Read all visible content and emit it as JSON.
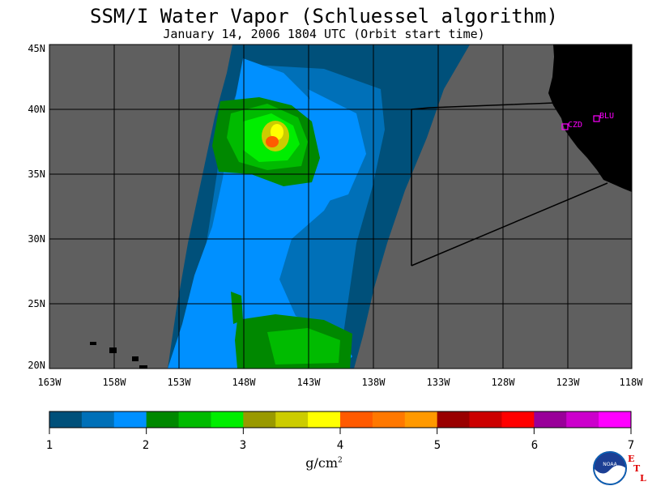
{
  "header": {
    "title": "SSM/I Water Vapor (Schluessel algorithm)",
    "subtitle": "January 14, 2006  1804 UTC  (Orbit start time)"
  },
  "map": {
    "lat_labels": [
      "45N",
      "40N",
      "35N",
      "30N",
      "25N",
      "20N"
    ],
    "lon_labels": [
      "163W",
      "158W",
      "153W",
      "148W",
      "143W",
      "138W",
      "133W",
      "128W",
      "123W",
      "118W"
    ],
    "stations": [
      {
        "id": "CZD",
        "lat": 38.6,
        "lon": -123.2
      },
      {
        "id": "BLU",
        "lat": 39.3,
        "lon": -120.8
      }
    ],
    "colors": {
      "no_data": "#5f5f5f",
      "land": "#000000",
      "station": "#ff00ff"
    }
  },
  "colorbar": {
    "colors": [
      "#00507a",
      "#0070b8",
      "#0090ff",
      "#008800",
      "#00bb00",
      "#00ee00",
      "#999900",
      "#cccc00",
      "#ffff00",
      "#ff5a00",
      "#ff7800",
      "#ff9900",
      "#990000",
      "#cc0000",
      "#ff0000",
      "#990099",
      "#cc00cc",
      "#ff00ff"
    ],
    "tick_labels": [
      "1",
      "2",
      "3",
      "4",
      "5",
      "6",
      "7"
    ],
    "units": "g/cm",
    "units_exp": "2"
  },
  "logo": {
    "noaa_text": "NOAA",
    "etl_letters": [
      "E",
      "T",
      "L"
    ]
  }
}
